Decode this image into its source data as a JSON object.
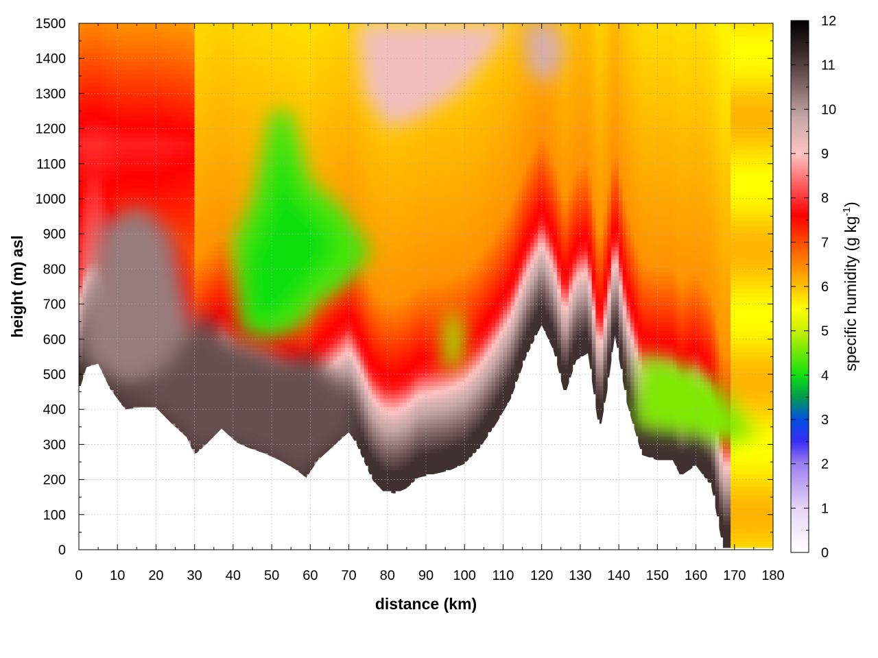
{
  "chart_data": {
    "type": "heatmap",
    "title": "",
    "xlabel": "distance (km)",
    "ylabel": "height (m) asl",
    "xlim": [
      0,
      180
    ],
    "ylim": [
      0,
      1500
    ],
    "x_ticks": [
      "0",
      "10",
      "20",
      "30",
      "40",
      "50",
      "60",
      "70",
      "80",
      "90",
      "100",
      "110",
      "120",
      "130",
      "140",
      "150",
      "160",
      "170",
      "180"
    ],
    "y_ticks": [
      "0",
      "100",
      "200",
      "300",
      "400",
      "500",
      "600",
      "700",
      "800",
      "900",
      "1000",
      "1100",
      "1200",
      "1300",
      "1400",
      "1500"
    ],
    "grid": true,
    "colorbar": {
      "label_main": "specific humidity (g kg",
      "label_sup": "-1",
      "label_close": ")",
      "range": [
        0,
        12
      ],
      "ticks": [
        "0",
        "1",
        "2",
        "3",
        "4",
        "5",
        "6",
        "7",
        "8",
        "9",
        "10",
        "11",
        "12"
      ],
      "stops": [
        {
          "v": 0,
          "color": "#ffffff"
        },
        {
          "v": 1,
          "color": "#e6d6f6"
        },
        {
          "v": 2,
          "color": "#9a7ef0"
        },
        {
          "v": 2.5,
          "color": "#3b2cf4"
        },
        {
          "v": 3,
          "color": "#0050e0"
        },
        {
          "v": 3.5,
          "color": "#009a50"
        },
        {
          "v": 4,
          "color": "#10e010"
        },
        {
          "v": 5,
          "color": "#c8f000"
        },
        {
          "v": 5.5,
          "color": "#ffff00"
        },
        {
          "v": 6,
          "color": "#ffc000"
        },
        {
          "v": 6.7,
          "color": "#ff7000"
        },
        {
          "v": 7.6,
          "color": "#ff0000"
        },
        {
          "v": 8.3,
          "color": "#ff6060"
        },
        {
          "v": 9,
          "color": "#ffc4c4"
        },
        {
          "v": 9.8,
          "color": "#c8a8a8"
        },
        {
          "v": 10.6,
          "color": "#7a6060"
        },
        {
          "v": 11.3,
          "color": "#382828"
        },
        {
          "v": 12,
          "color": "#000000"
        }
      ]
    },
    "terrain_km_m": [
      [
        0,
        450
      ],
      [
        2,
        520
      ],
      [
        5,
        530
      ],
      [
        8,
        460
      ],
      [
        12,
        400
      ],
      [
        16,
        405
      ],
      [
        20,
        405
      ],
      [
        24,
        360
      ],
      [
        28,
        320
      ],
      [
        30,
        270
      ],
      [
        33,
        300
      ],
      [
        37,
        345
      ],
      [
        41,
        305
      ],
      [
        44,
        290
      ],
      [
        48,
        275
      ],
      [
        52,
        255
      ],
      [
        56,
        230
      ],
      [
        59,
        205
      ],
      [
        62,
        255
      ],
      [
        66,
        295
      ],
      [
        70,
        335
      ],
      [
        72,
        300
      ],
      [
        76,
        200
      ],
      [
        79,
        165
      ],
      [
        82,
        160
      ],
      [
        85,
        175
      ],
      [
        88,
        205
      ],
      [
        92,
        215
      ],
      [
        96,
        225
      ],
      [
        100,
        245
      ],
      [
        104,
        290
      ],
      [
        108,
        355
      ],
      [
        112,
        430
      ],
      [
        116,
        550
      ],
      [
        120,
        640
      ],
      [
        123,
        570
      ],
      [
        126,
        440
      ],
      [
        129,
        540
      ],
      [
        132,
        560
      ],
      [
        135,
        330
      ],
      [
        137,
        450
      ],
      [
        139,
        610
      ],
      [
        142,
        420
      ],
      [
        146,
        270
      ],
      [
        150,
        255
      ],
      [
        154,
        255
      ],
      [
        156,
        210
      ],
      [
        160,
        240
      ],
      [
        164,
        180
      ],
      [
        167,
        5
      ],
      [
        172,
        5
      ],
      [
        180,
        5
      ]
    ],
    "fields": [
      {
        "name": "moist boundary layer",
        "value": 10.8,
        "points": [
          [
            0,
            450
          ],
          [
            6,
            520
          ],
          [
            14,
            430
          ],
          [
            24,
            560
          ],
          [
            28,
            620
          ],
          [
            33,
            680
          ],
          [
            38,
            600
          ],
          [
            46,
            570
          ],
          [
            54,
            540
          ],
          [
            60,
            560
          ],
          [
            64,
            520
          ],
          [
            70,
            450
          ],
          [
            72,
            330
          ],
          [
            66,
            300
          ],
          [
            58,
            205
          ],
          [
            50,
            260
          ],
          [
            40,
            300
          ],
          [
            30,
            280
          ],
          [
            20,
            400
          ],
          [
            12,
            400
          ],
          [
            4,
            520
          ]
        ]
      },
      {
        "name": "upper-left moist core",
        "value": 10.3,
        "points": [
          [
            0,
            560
          ],
          [
            6,
            930
          ],
          [
            16,
            980
          ],
          [
            24,
            900
          ],
          [
            29,
            650
          ],
          [
            24,
            540
          ],
          [
            14,
            470
          ],
          [
            4,
            520
          ]
        ]
      },
      {
        "name": "dry tongue",
        "value": 4.3,
        "points": [
          [
            42,
            620
          ],
          [
            40,
            880
          ],
          [
            45,
            1000
          ],
          [
            50,
            1250
          ],
          [
            55,
            1250
          ],
          [
            60,
            1050
          ],
          [
            68,
            980
          ],
          [
            76,
            850
          ],
          [
            70,
            760
          ],
          [
            62,
            700
          ],
          [
            57,
            630
          ],
          [
            50,
            600
          ]
        ]
      },
      {
        "name": "dry tongue core",
        "value": 4.0,
        "points": [
          [
            44,
            650
          ],
          [
            43,
            820
          ],
          [
            48,
            950
          ],
          [
            53,
            1150
          ],
          [
            57,
            1000
          ],
          [
            64,
            930
          ],
          [
            67,
            850
          ],
          [
            60,
            760
          ],
          [
            54,
            680
          ],
          [
            49,
            640
          ]
        ]
      },
      {
        "name": "east dry pocket",
        "value": 4.6,
        "points": [
          [
            144,
            350
          ],
          [
            146,
            560
          ],
          [
            158,
            520
          ],
          [
            166,
            470
          ],
          [
            172,
            380
          ],
          [
            176,
            330
          ],
          [
            168,
            300
          ],
          [
            158,
            330
          ],
          [
            150,
            340
          ]
        ]
      },
      {
        "name": "small dry pocket",
        "value": 4.8,
        "points": [
          [
            94,
            520
          ],
          [
            95,
            660
          ],
          [
            98,
            690
          ],
          [
            100,
            600
          ],
          [
            99,
            520
          ]
        ]
      },
      {
        "name": "upper moist band",
        "value": 9.2,
        "points": [
          [
            72,
            1500
          ],
          [
            74,
            1300
          ],
          [
            80,
            1200
          ],
          [
            88,
            1230
          ],
          [
            98,
            1300
          ],
          [
            106,
            1400
          ],
          [
            112,
            1500
          ]
        ]
      },
      {
        "name": "upper pink streak",
        "value": 9.6,
        "points": [
          [
            115,
            1500
          ],
          [
            117,
            1350
          ],
          [
            123,
            1330
          ],
          [
            126,
            1420
          ],
          [
            124,
            1500
          ]
        ]
      }
    ]
  }
}
